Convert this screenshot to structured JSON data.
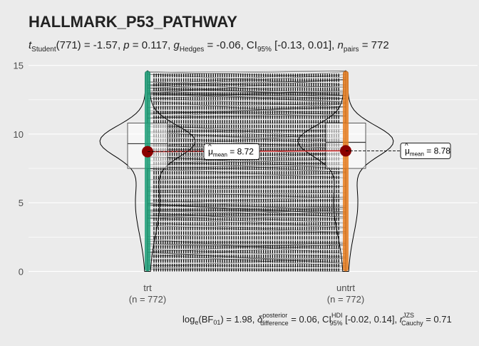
{
  "chart_data": {
    "type": "violin",
    "title": "HALLMARK_P53_PATHWAY",
    "subtitle": {
      "t_label": "t",
      "t_sub": "Student",
      "t_value": "(771) = -1.57, ",
      "p_label": "p",
      "p_value": " = 0.117, ",
      "g_label": "g",
      "g_sub": "Hedges",
      "g_value": " = -0.06, CI",
      "ci_sub": "95%",
      "ci_value": " [-0.13, 0.01], ",
      "n_label": "n",
      "n_sub": "pairs",
      "n_value": " = 772"
    },
    "caption": {
      "log_text": "log",
      "log_sub": "e",
      "bf_text": "(BF",
      "bf_sub": "01",
      "bf_value": ") = 1.98, ",
      "delta_sup": "posterior",
      "delta_sub": "difference",
      "delta_value": " = 0.06, CI",
      "hdi_sup": "HDI",
      "hdi_sub": "95%",
      "hdi_value": " [-0.02, 0.14], ",
      "r_label": "r",
      "r_sup": "JZS",
      "r_sub": "Cauchy",
      "r_value": " = 0.71"
    },
    "categories": [
      "trt",
      "untrt"
    ],
    "n_labels": [
      "(n = 772)",
      "(n = 772)"
    ],
    "ylim": [
      -0.6,
      15.4
    ],
    "yticks": [
      0,
      5,
      10,
      15
    ],
    "means": [
      8.72,
      8.78
    ],
    "mean_labels": [
      "= 8.72",
      "= 8.78"
    ],
    "mean_symbol": "μ",
    "mean_sub": "mean",
    "boxes": [
      {
        "q1": 7.5,
        "median": 9.3,
        "q3": 10.8
      },
      {
        "q1": 7.5,
        "median": 9.4,
        "q3": 10.8
      }
    ],
    "range": [
      0,
      14.6
    ],
    "colors": {
      "trt": "#1b9e77",
      "untrt": "#e87d1e",
      "mean_point": "#8b0000",
      "mean_line": "#cc2020"
    }
  }
}
